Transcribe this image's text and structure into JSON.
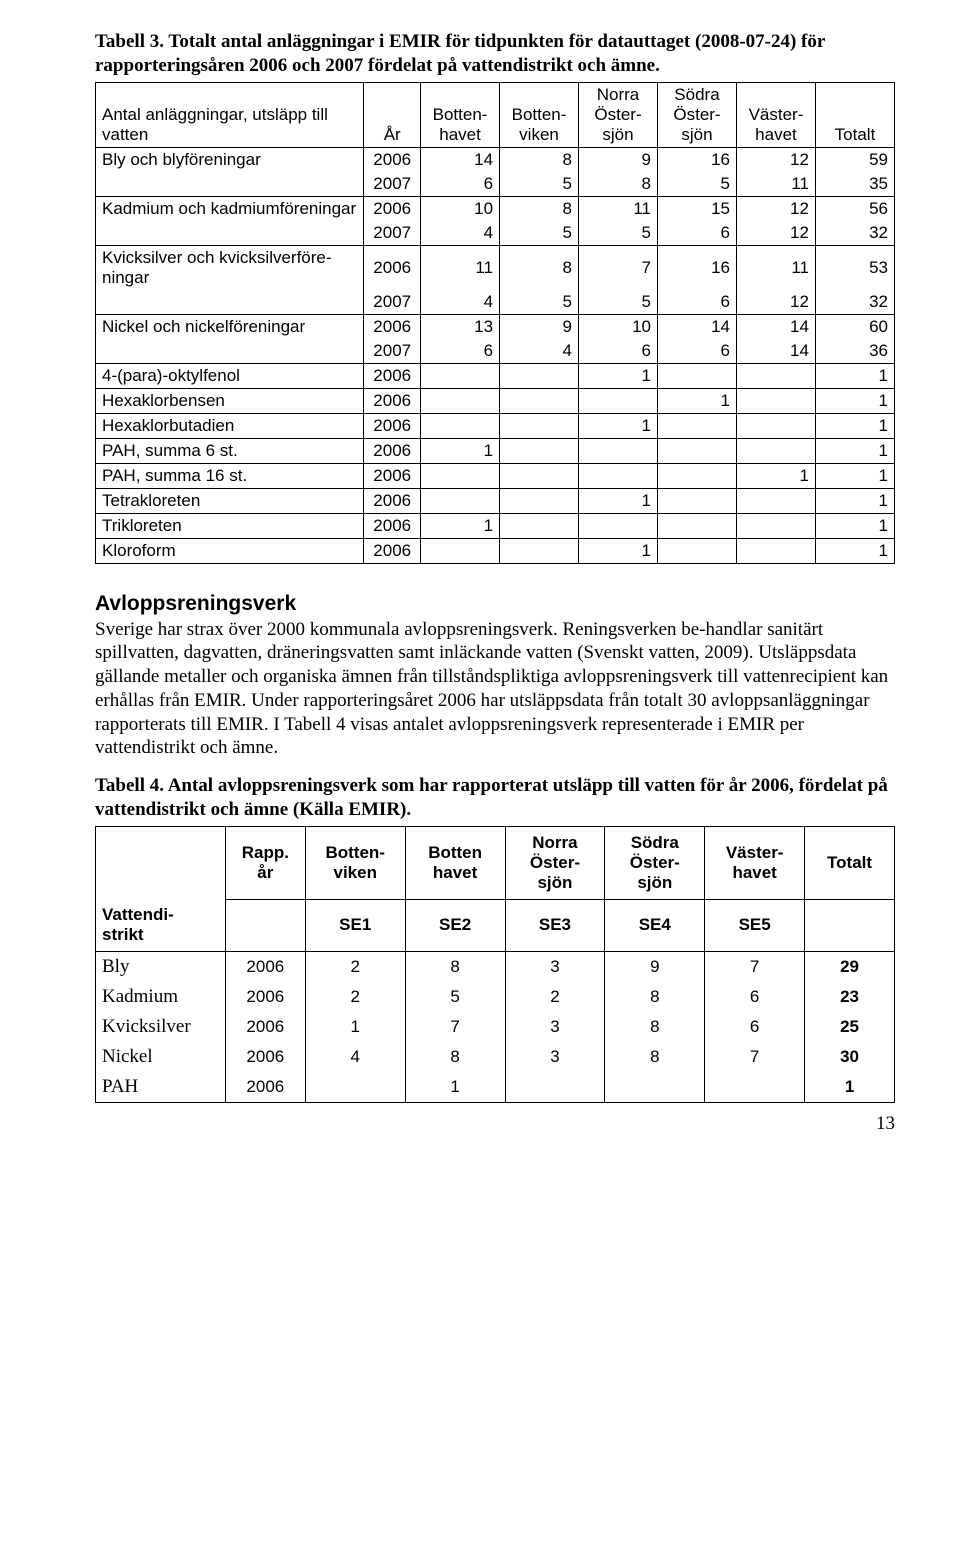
{
  "table3": {
    "caption": "Tabell 3. Totalt antal anläggningar i EMIR för tidpunkten för datauttaget (2008-07-24) för rapporteringsåren 2006 och 2007 fördelat på vattendistrikt och ämne.",
    "headers": {
      "col1": "Antal anläggningar, utsläpp till vatten",
      "year": "År",
      "c1": "Botten-\nhavet",
      "c2": "Botten-\nviken",
      "c3": "Norra\nÖster-\nsjön",
      "c4": "Södra\nÖster-\nsjön",
      "c5": "Väster-\nhavet",
      "total": "Totalt"
    },
    "groups": [
      {
        "label": "Bly och blyföreningar",
        "rows": [
          {
            "year": "2006",
            "v": [
              "14",
              "8",
              "9",
              "16",
              "12",
              "59"
            ]
          },
          {
            "year": "2007",
            "v": [
              "6",
              "5",
              "8",
              "5",
              "11",
              "35"
            ]
          }
        ]
      },
      {
        "label": "Kadmium och kadmiumföreningar",
        "rows": [
          {
            "year": "2006",
            "v": [
              "10",
              "8",
              "11",
              "15",
              "12",
              "56"
            ]
          },
          {
            "year": "2007",
            "v": [
              "4",
              "5",
              "5",
              "6",
              "12",
              "32"
            ]
          }
        ]
      },
      {
        "label": "Kvicksilver och kvicksilverföre-ningar",
        "rows": [
          {
            "year": "2006",
            "v": [
              "11",
              "8",
              "7",
              "16",
              "11",
              "53"
            ]
          },
          {
            "year": "2007",
            "v": [
              "4",
              "5",
              "5",
              "6",
              "12",
              "32"
            ]
          }
        ]
      },
      {
        "label": "Nickel och nickelföreningar",
        "rows": [
          {
            "year": "2006",
            "v": [
              "13",
              "9",
              "10",
              "14",
              "14",
              "60"
            ]
          },
          {
            "year": "2007",
            "v": [
              "6",
              "4",
              "6",
              "6",
              "14",
              "36"
            ]
          }
        ]
      },
      {
        "label": "4-(para)-oktylfenol",
        "rows": [
          {
            "year": "2006",
            "v": [
              "",
              "",
              "1",
              "",
              "",
              "1"
            ]
          }
        ]
      },
      {
        "label": "Hexaklorbensen",
        "rows": [
          {
            "year": "2006",
            "v": [
              "",
              "",
              "",
              "1",
              "",
              "1"
            ]
          }
        ]
      },
      {
        "label": "Hexaklorbutadien",
        "rows": [
          {
            "year": "2006",
            "v": [
              "",
              "",
              "1",
              "",
              "",
              "1"
            ]
          }
        ]
      },
      {
        "label": "PAH, summa 6 st.",
        "rows": [
          {
            "year": "2006",
            "v": [
              "1",
              "",
              "",
              "",
              "",
              "1"
            ]
          }
        ]
      },
      {
        "label": "PAH, summa 16 st.",
        "rows": [
          {
            "year": "2006",
            "v": [
              "",
              "",
              "",
              "",
              "1",
              "1"
            ]
          }
        ]
      },
      {
        "label": "Tetrakloreten",
        "rows": [
          {
            "year": "2006",
            "v": [
              "",
              "",
              "1",
              "",
              "",
              "1"
            ]
          }
        ]
      },
      {
        "label": "Trikloreten",
        "rows": [
          {
            "year": "2006",
            "v": [
              "1",
              "",
              "",
              "",
              "",
              "1"
            ]
          }
        ]
      },
      {
        "label": "Kloroform",
        "rows": [
          {
            "year": "2006",
            "v": [
              "",
              "",
              "1",
              "",
              "",
              "1"
            ]
          }
        ]
      }
    ]
  },
  "section": {
    "heading": "Avloppsreningsverk",
    "body": "Sverige har strax över 2000 kommunala avloppsreningsverk. Reningsverken be-handlar sanitärt spillvatten, dagvatten, dräneringsvatten samt inläckande vatten (Svenskt vatten, 2009). Utsläppsdata gällande metaller och organiska ämnen från tillståndspliktiga avloppsreningsverk till vattenrecipient kan erhållas från EMIR. Under rapporteringsåret 2006 har utsläppsdata från totalt 30 avloppsanläggningar rapporterats till EMIR. I Tabell 4 visas antalet avloppsreningsverk representerade i EMIR per vattendistrikt och ämne."
  },
  "table4": {
    "caption": "Tabell 4. Antal avloppsreningsverk som har rapporterat utsläpp till vatten för år 2006, fördelat på vattendistrikt och ämne (Källa EMIR).",
    "hdr1": {
      "blank": "",
      "year": "Rapp.\når",
      "c1": "Botten-\nviken",
      "c2": "Botten\nhavet",
      "c3": "Norra\nÖster-\nsjön",
      "c4": "Södra\nÖster-\nsjön",
      "c5": "Väster-\nhavet",
      "total": "Totalt"
    },
    "hdr2": {
      "vd": "Vattendi-\nstrikt",
      "blank": "",
      "se1": "SE1",
      "se2": "SE2",
      "se3": "SE3",
      "se4": "SE4",
      "se5": "SE5",
      "blank2": ""
    },
    "rows": [
      {
        "label": "Bly",
        "year": "2006",
        "v": [
          "2",
          "8",
          "3",
          "9",
          "7"
        ],
        "total": "29"
      },
      {
        "label": "Kadmium",
        "year": "2006",
        "v": [
          "2",
          "5",
          "2",
          "8",
          "6"
        ],
        "total": "23"
      },
      {
        "label": "Kvicksilver",
        "year": "2006",
        "v": [
          "1",
          "7",
          "3",
          "8",
          "6"
        ],
        "total": "25"
      },
      {
        "label": "Nickel",
        "year": "2006",
        "v": [
          "4",
          "8",
          "3",
          "8",
          "7"
        ],
        "total": "30"
      },
      {
        "label": "PAH",
        "year": "2006",
        "v": [
          "",
          "1",
          "",
          "",
          ""
        ],
        "total": "1"
      }
    ]
  },
  "pagenum": "13"
}
